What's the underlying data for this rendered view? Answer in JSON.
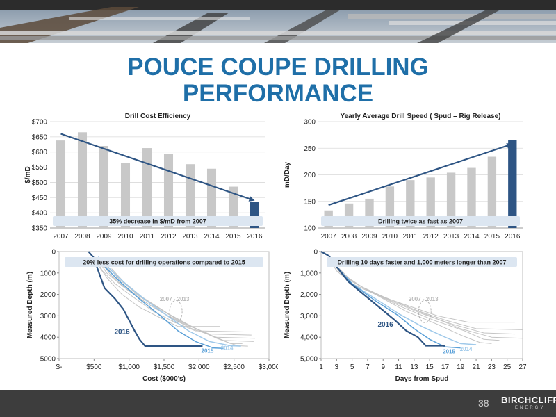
{
  "slide": {
    "title_line1": "POUCE COUPE DRILLING",
    "title_line2": "PERFORMANCE",
    "page_number": "38",
    "brand_name": "BIRCHCLIFF",
    "brand_sub": "ENERGY"
  },
  "colors": {
    "title": "#1f6fa8",
    "bar_gray": "#c8c8c8",
    "bar_highlight": "#2e5584",
    "arrow": "#2e5584",
    "annotation_bg": "#dce6f1",
    "footer": "#3d3d3d"
  },
  "chart_data": [
    {
      "type": "bar",
      "title": "Drill Cost Efficiency",
      "ylabel": "$/mD",
      "xlabel": "",
      "categories": [
        "2007",
        "2008",
        "2009",
        "2010",
        "2011",
        "2012",
        "2013",
        "2014",
        "2015",
        "2016"
      ],
      "values": [
        638,
        665,
        620,
        563,
        613,
        594,
        560,
        545,
        486,
        436
      ],
      "highlight": "2016",
      "ylim": [
        350,
        700
      ],
      "yticks": [
        350,
        400,
        450,
        500,
        550,
        600,
        650,
        700
      ],
      "ytick_labels": [
        "$350",
        "$400",
        "$450",
        "$500",
        "$550",
        "$600",
        "$650",
        "$700"
      ],
      "grid": true,
      "trend_arrow": {
        "from": [
          "2007",
          660
        ],
        "to": [
          "2016",
          440
        ]
      },
      "annotation": "35% decrease in $/mD from 2007"
    },
    {
      "type": "bar",
      "title": "Yearly Average Drill Speed ( Spud – Rig Release)",
      "ylabel": "mD/Day",
      "xlabel": "",
      "categories": [
        "2007",
        "2008",
        "2009",
        "2010",
        "2011",
        "2012",
        "2013",
        "2014",
        "2015",
        "2016"
      ],
      "values": [
        133,
        146,
        155,
        178,
        190,
        195,
        204,
        213,
        234,
        265
      ],
      "highlight": "2016",
      "ylim": [
        100,
        300
      ],
      "yticks": [
        100,
        150,
        200,
        250,
        300
      ],
      "ytick_labels": [
        "100",
        "150",
        "200",
        "250",
        "300"
      ],
      "grid": true,
      "trend_arrow": {
        "from": [
          "2007",
          143
        ],
        "to": [
          "2016",
          258
        ]
      },
      "annotation": "Drilling twice as fast as 2007"
    },
    {
      "type": "line",
      "title": "",
      "xlabel": "Cost ($000’s)",
      "ylabel": "Measured Depth (m)",
      "xlim": [
        0,
        3000
      ],
      "ylim": [
        0,
        5000
      ],
      "y_inverted": true,
      "xticks": [
        0,
        500,
        1000,
        1500,
        2000,
        2500,
        3000
      ],
      "xtick_labels": [
        "$-",
        "$500",
        "$1,000",
        "$1,500",
        "$2,000",
        "$2,500",
        "$3,000"
      ],
      "yticks": [
        0,
        1000,
        2000,
        3000,
        4000,
        5000
      ],
      "ytick_labels": [
        "0",
        "1000",
        "2000",
        "3000",
        "4000",
        "5000"
      ],
      "annotation": "20% less cost for drilling operations compared to 2015",
      "series_labels": [
        {
          "text": "2007 - 2013",
          "x": 1650,
          "y": 2300,
          "color": "#b8b8b8"
        },
        {
          "text": "2016",
          "x": 900,
          "y": 3850,
          "color": "#2e5584"
        },
        {
          "text": "2015",
          "x": 2120,
          "y": 4720,
          "color": "#5aa0d8"
        },
        {
          "text": "2014",
          "x": 2400,
          "y": 4600,
          "color": "#9fc9ea"
        }
      ],
      "series": [
        {
          "group": "2007-2013",
          "color": "#c4c4c4",
          "width": 1,
          "points": [
            [
              480,
              200
            ],
            [
              560,
              650
            ],
            [
              700,
              1300
            ],
            [
              900,
              2000
            ],
            [
              1150,
              2600
            ],
            [
              1450,
              3100
            ],
            [
              1700,
              3500
            ],
            [
              2300,
              3500
            ]
          ]
        },
        {
          "group": "2007-2013",
          "color": "#c4c4c4",
          "width": 1,
          "points": [
            [
              520,
              300
            ],
            [
              620,
              900
            ],
            [
              800,
              1500
            ],
            [
              1050,
              2100
            ],
            [
              1350,
              2800
            ],
            [
              1650,
              3300
            ],
            [
              1950,
              3700
            ],
            [
              2650,
              3750
            ]
          ]
        },
        {
          "group": "2007-2013",
          "color": "#c4c4c4",
          "width": 1,
          "points": [
            [
              560,
              400
            ],
            [
              680,
              1000
            ],
            [
              900,
              1600
            ],
            [
              1200,
              2300
            ],
            [
              1500,
              2900
            ],
            [
              1800,
              3400
            ],
            [
              2150,
              3850
            ],
            [
              2750,
              3900
            ]
          ]
        },
        {
          "group": "2007-2013",
          "color": "#c4c4c4",
          "width": 1,
          "points": [
            [
              600,
              500
            ],
            [
              740,
              1100
            ],
            [
              980,
              1800
            ],
            [
              1300,
              2500
            ],
            [
              1600,
              3100
            ],
            [
              1900,
              3600
            ],
            [
              2250,
              4000
            ],
            [
              2800,
              4050
            ]
          ]
        },
        {
          "group": "2007-2013",
          "color": "#c4c4c4",
          "width": 1,
          "points": [
            [
              650,
              600
            ],
            [
              800,
              1200
            ],
            [
              1050,
              1900
            ],
            [
              1400,
              2600
            ],
            [
              1700,
              3200
            ],
            [
              2050,
              3750
            ],
            [
              2350,
              4150
            ],
            [
              2780,
              4200
            ]
          ]
        },
        {
          "group": "2007-2013",
          "color": "#c4c4c4",
          "width": 1,
          "points": [
            [
              700,
              700
            ],
            [
              860,
              1300
            ],
            [
              1120,
              2000
            ],
            [
              1480,
              2750
            ],
            [
              1800,
              3350
            ],
            [
              2150,
              3900
            ],
            [
              2450,
              4300
            ],
            [
              2620,
              4300
            ]
          ]
        },
        {
          "group": "2007-2013",
          "color": "#c4c4c4",
          "width": 1,
          "points": [
            [
              750,
              800
            ],
            [
              920,
              1400
            ],
            [
              1200,
              2150
            ],
            [
              1560,
              2900
            ],
            [
              1900,
              3500
            ],
            [
              2250,
              4050
            ],
            [
              2550,
              4400
            ],
            [
              2700,
              4420
            ]
          ]
        },
        {
          "group": "2014",
          "color": "#9fc9ea",
          "width": 1.5,
          "points": [
            [
              600,
              300
            ],
            [
              720,
              800
            ],
            [
              950,
              1500
            ],
            [
              1250,
              2300
            ],
            [
              1550,
              3000
            ],
            [
              1850,
              3700
            ],
            [
              2150,
              4200
            ],
            [
              2450,
              4400
            ],
            [
              2600,
              4420
            ]
          ]
        },
        {
          "group": "2015",
          "color": "#5aa0d8",
          "width": 1.5,
          "points": [
            [
              560,
              250
            ],
            [
              680,
              800
            ],
            [
              900,
              1500
            ],
            [
              1180,
              2300
            ],
            [
              1450,
              3000
            ],
            [
              1700,
              3700
            ],
            [
              1950,
              4200
            ],
            [
              2200,
              4500
            ],
            [
              2350,
              4520
            ]
          ]
        },
        {
          "group": "2016",
          "color": "#2e5584",
          "width": 2.2,
          "points": [
            [
              420,
              0
            ],
            [
              500,
              300
            ],
            [
              560,
              900
            ],
            [
              650,
              1700
            ],
            [
              800,
              2200
            ],
            [
              920,
              2700
            ],
            [
              1000,
              3200
            ],
            [
              1080,
              3700
            ],
            [
              1150,
              4100
            ],
            [
              1230,
              4420
            ],
            [
              2050,
              4420
            ]
          ]
        }
      ]
    },
    {
      "type": "line",
      "title": "",
      "xlabel": "Days from Spud",
      "ylabel": "Measured Depth (m)",
      "xlim": [
        1,
        27
      ],
      "ylim": [
        0,
        5000
      ],
      "y_inverted": true,
      "xticks": [
        1,
        3,
        5,
        7,
        9,
        11,
        13,
        15,
        17,
        19,
        21,
        23,
        25,
        27
      ],
      "xtick_labels": [
        "1",
        "3",
        "5",
        "7",
        "9",
        "11",
        "13",
        "15",
        "17",
        "19",
        "21",
        "23",
        "25",
        "27"
      ],
      "yticks": [
        0,
        1000,
        2000,
        3000,
        4000,
        5000
      ],
      "ytick_labels": [
        "0",
        "1,000",
        "2,000",
        "3,000",
        "4,000",
        "5,000"
      ],
      "annotation": "Drilling 10 days faster and 1,000 meters longer than 2007",
      "series_labels": [
        {
          "text": "2007 - 2013",
          "x": 14.2,
          "y": 2300,
          "color": "#b8b8b8"
        },
        {
          "text": "2016",
          "x": 9.3,
          "y": 3500,
          "color": "#2e5584"
        },
        {
          "text": "2015",
          "x": 17.5,
          "y": 4750,
          "color": "#5aa0d8"
        },
        {
          "text": "2014",
          "x": 19.7,
          "y": 4650,
          "color": "#9fc9ea"
        }
      ],
      "series": [
        {
          "group": "2007-2013",
          "color": "#c4c4c4",
          "width": 1,
          "points": [
            [
              2,
              300
            ],
            [
              3,
              900
            ],
            [
              5,
              1500
            ],
            [
              8,
              2000
            ],
            [
              12,
              2500
            ],
            [
              16,
              3000
            ],
            [
              20,
              3300
            ],
            [
              26,
              3300
            ]
          ]
        },
        {
          "group": "2007-2013",
          "color": "#c4c4c4",
          "width": 1,
          "points": [
            [
              2,
              300
            ],
            [
              3.5,
              1000
            ],
            [
              6,
              1600
            ],
            [
              9,
              2100
            ],
            [
              13,
              2700
            ],
            [
              17,
              3200
            ],
            [
              21,
              3600
            ],
            [
              27,
              3650
            ]
          ]
        },
        {
          "group": "2007-2013",
          "color": "#c4c4c4",
          "width": 1,
          "points": [
            [
              2,
              300
            ],
            [
              4,
              1100
            ],
            [
              6.5,
              1700
            ],
            [
              10,
              2300
            ],
            [
              14,
              2900
            ],
            [
              18,
              3400
            ],
            [
              22,
              3800
            ],
            [
              26,
              3850
            ]
          ]
        },
        {
          "group": "2007-2013",
          "color": "#c4c4c4",
          "width": 1,
          "points": [
            [
              2,
              300
            ],
            [
              4,
              1200
            ],
            [
              7,
              1800
            ],
            [
              11,
              2400
            ],
            [
              15,
              3000
            ],
            [
              19,
              3600
            ],
            [
              23,
              4000
            ],
            [
              27,
              4050
            ]
          ]
        },
        {
          "group": "2007-2013",
          "color": "#c4c4c4",
          "width": 1,
          "points": [
            [
              2,
              300
            ],
            [
              4.5,
              1300
            ],
            [
              7.5,
              1900
            ],
            [
              11.5,
              2600
            ],
            [
              15.5,
              3200
            ],
            [
              19.5,
              3700
            ],
            [
              22,
              4100
            ],
            [
              24,
              4150
            ]
          ]
        },
        {
          "group": "2007-2013",
          "color": "#c4c4c4",
          "width": 1,
          "points": [
            [
              2,
              300
            ],
            [
              5,
              1400
            ],
            [
              8,
              2000
            ],
            [
              12,
              2800
            ],
            [
              16,
              3400
            ],
            [
              19,
              3900
            ],
            [
              21.5,
              4250
            ],
            [
              23,
              4300
            ]
          ]
        },
        {
          "group": "2014",
          "color": "#9fc9ea",
          "width": 1.5,
          "points": [
            [
              2,
              200
            ],
            [
              3,
              700
            ],
            [
              5,
              1500
            ],
            [
              8,
              2200
            ],
            [
              11,
              2900
            ],
            [
              14,
              3500
            ],
            [
              17,
              4000
            ],
            [
              19,
              4300
            ],
            [
              21,
              4350
            ]
          ]
        },
        {
          "group": "2015",
          "color": "#5aa0d8",
          "width": 1.5,
          "points": [
            [
              2,
              200
            ],
            [
              3,
              700
            ],
            [
              5,
              1500
            ],
            [
              8,
              2300
            ],
            [
              11,
              3000
            ],
            [
              13,
              3600
            ],
            [
              15,
              4100
            ],
            [
              17,
              4450
            ],
            [
              19,
              4500
            ]
          ]
        },
        {
          "group": "2016",
          "color": "#2e5584",
          "width": 2.2,
          "points": [
            [
              1,
              0
            ],
            [
              2,
              200
            ],
            [
              3,
              700
            ],
            [
              4.5,
              1400
            ],
            [
              6.5,
              2000
            ],
            [
              8.5,
              2600
            ],
            [
              10.5,
              3200
            ],
            [
              12,
              3700
            ],
            [
              13.5,
              4000
            ],
            [
              14.5,
              4400
            ],
            [
              17,
              4400
            ]
          ]
        }
      ]
    }
  ]
}
